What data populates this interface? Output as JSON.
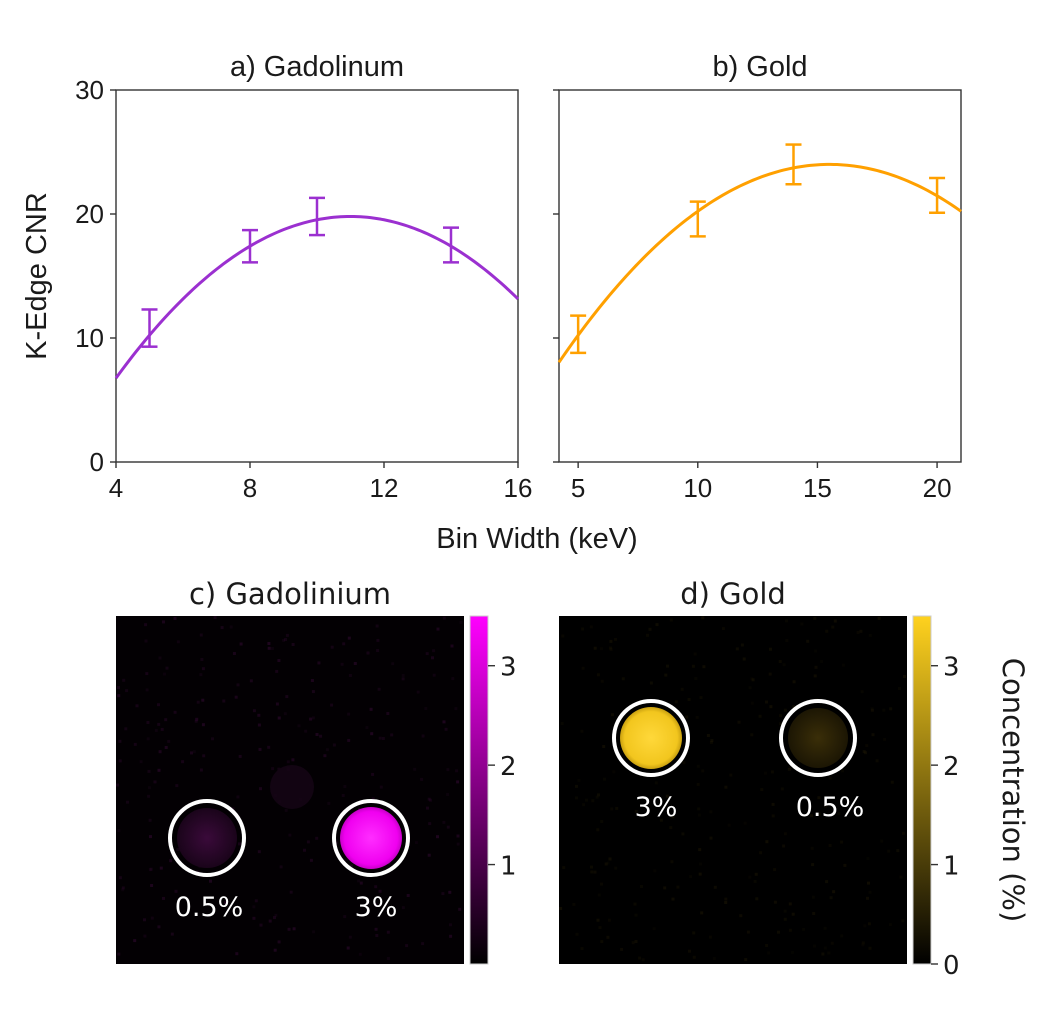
{
  "chart_data": [
    {
      "type": "line",
      "title": "a) Gadolinum",
      "color": "#9b30d0",
      "x": [
        5,
        8,
        10,
        14
      ],
      "y": [
        10.8,
        17.4,
        19.8,
        17.5
      ],
      "yerr": [
        1.5,
        1.3,
        1.5,
        1.4
      ],
      "fit": {
        "peak_x": 11.0,
        "peak_y": 19.8,
        "curvature": 0.266
      },
      "xlim": [
        4,
        16
      ],
      "xticks": [
        4,
        8,
        12,
        16
      ],
      "ylim": [
        0,
        30
      ],
      "yticks": [
        0,
        10,
        20,
        30
      ],
      "ylabel": "K-Edge CNR"
    },
    {
      "type": "line",
      "title": "b) Gold",
      "color": "#ffa000",
      "x": [
        5,
        10,
        14,
        20
      ],
      "y": [
        10.3,
        19.6,
        24.0,
        21.5
      ],
      "yerr": [
        1.5,
        1.4,
        1.6,
        1.4
      ],
      "fit": {
        "peak_x": 15.5,
        "peak_y": 24.0,
        "curvature": 0.125
      },
      "xlim": [
        4.2,
        21
      ],
      "xticks": [
        5,
        10,
        15,
        20
      ],
      "ylim": [
        0,
        30
      ],
      "yticks": [
        0,
        10,
        20,
        30
      ],
      "xlabel": "Bin Width (keV)"
    },
    {
      "type": "heatmap",
      "title": "c) Gadolinium",
      "colormap": [
        "#000000",
        "#ff00ff"
      ],
      "colorbar_ticks": [
        "1",
        "2",
        "3"
      ],
      "vmax": 3.5,
      "vials": [
        {
          "label": "0.5%",
          "concentration": 0.5
        },
        {
          "label": "3%",
          "concentration": 3
        }
      ]
    },
    {
      "type": "heatmap",
      "title": "d) Gold",
      "colormap": [
        "#000000",
        "#ffd21e"
      ],
      "colorbar_ticks": [
        "0",
        "1",
        "2",
        "3"
      ],
      "colorbar_label": "Concentration (%)",
      "vmax": 3.5,
      "vials": [
        {
          "label": "3%",
          "concentration": 3
        },
        {
          "label": "0.5%",
          "concentration": 0.5
        }
      ]
    }
  ]
}
